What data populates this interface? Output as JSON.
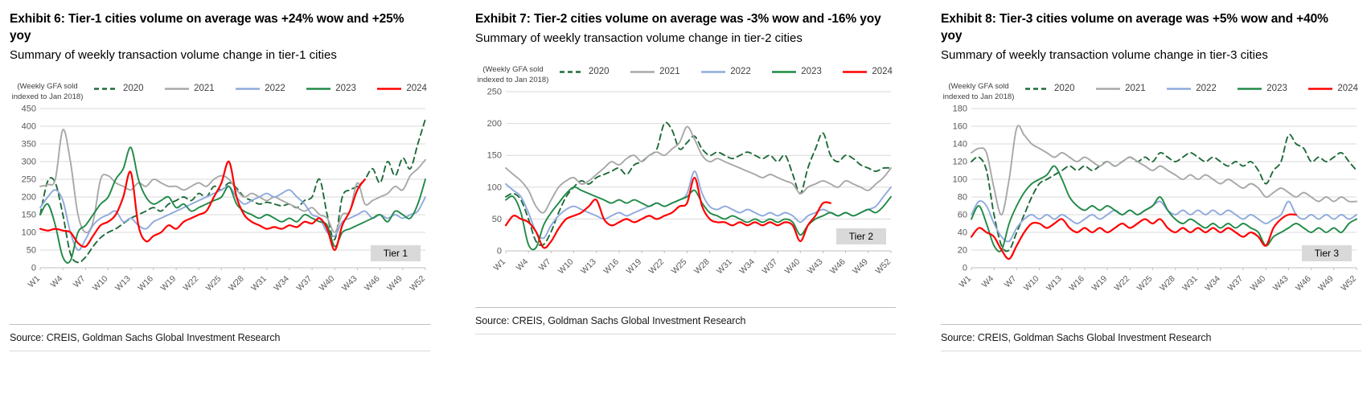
{
  "style": {
    "grid_color": "#d9d9d9",
    "axis_color": "#bfbfbf",
    "tick_label_color": "#595959",
    "badge_bg": "#d9d9d9"
  },
  "chart_data": [
    {
      "type": "line",
      "title": "Exhibit 6: Tier-1 cities volume on average was +24% wow and +25% yoy",
      "subtitle": "Summary of weekly transaction volume change in tier-1 cities",
      "ylabel": "(Weekly GFA sold indexed to Jan 2018)",
      "tier_label": "Tier 1",
      "source": "Source: CREIS, Goldman Sachs Global Investment Research",
      "legend_position": "top",
      "grid": true,
      "x_weeks": 52,
      "x_tick_labels": [
        "W1",
        "W4",
        "W7",
        "W10",
        "W13",
        "W16",
        "W19",
        "W22",
        "W25",
        "W28",
        "W31",
        "W34",
        "W37",
        "W40",
        "W43",
        "W46",
        "W49",
        "W52"
      ],
      "ylim": [
        0,
        450
      ],
      "y_ticks": [
        0,
        50,
        100,
        150,
        200,
        250,
        300,
        350,
        400,
        450
      ],
      "series": [
        {
          "name": "2020",
          "color": "#1f6b3a",
          "dash": "7 5",
          "values": [
            150,
            245,
            240,
            150,
            40,
            15,
            30,
            60,
            85,
            100,
            110,
            125,
            140,
            150,
            160,
            170,
            160,
            180,
            190,
            200,
            190,
            210,
            200,
            230,
            220,
            240,
            225,
            200,
            190,
            180,
            185,
            180,
            175,
            180,
            170,
            190,
            200,
            250,
            150,
            80,
            200,
            220,
            230,
            250,
            280,
            240,
            300,
            260,
            310,
            280,
            350,
            420
          ]
        },
        {
          "name": "2021",
          "color": "#a8a8a8",
          "dash": null,
          "values": [
            230,
            235,
            250,
            390,
            300,
            150,
            100,
            130,
            250,
            260,
            240,
            230,
            220,
            240,
            230,
            250,
            240,
            230,
            230,
            220,
            230,
            240,
            230,
            250,
            260,
            250,
            220,
            200,
            210,
            200,
            190,
            200,
            190,
            180,
            170,
            160,
            170,
            150,
            140,
            100,
            150,
            160,
            240,
            180,
            190,
            200,
            210,
            230,
            220,
            260,
            280,
            305
          ]
        },
        {
          "name": "2022",
          "color": "#8faadc",
          "dash": null,
          "values": [
            170,
            200,
            220,
            190,
            100,
            50,
            80,
            120,
            140,
            150,
            160,
            130,
            140,
            120,
            110,
            130,
            140,
            150,
            160,
            170,
            180,
            190,
            200,
            210,
            220,
            230,
            200,
            180,
            190,
            200,
            210,
            200,
            210,
            220,
            200,
            180,
            150,
            140,
            100,
            90,
            130,
            140,
            150,
            160,
            140,
            150,
            140,
            150,
            140,
            150,
            160,
            200
          ]
        },
        {
          "name": "2023",
          "color": "#208a47",
          "dash": null,
          "values": [
            150,
            180,
            120,
            30,
            20,
            100,
            120,
            150,
            180,
            200,
            250,
            280,
            340,
            250,
            200,
            180,
            190,
            200,
            170,
            180,
            160,
            170,
            180,
            190,
            200,
            230,
            180,
            160,
            150,
            140,
            150,
            140,
            130,
            140,
            130,
            150,
            140,
            130,
            120,
            60,
            100,
            110,
            120,
            130,
            140,
            150,
            130,
            160,
            150,
            140,
            180,
            250
          ]
        },
        {
          "name": "2024",
          "color": "#fe0000",
          "dash": null,
          "values": [
            110,
            105,
            110,
            105,
            100,
            70,
            60,
            90,
            120,
            130,
            150,
            200,
            270,
            120,
            75,
            90,
            100,
            120,
            110,
            130,
            140,
            150,
            160,
            200,
            240,
            300,
            200,
            150,
            130,
            120,
            110,
            115,
            110,
            120,
            115,
            130,
            125,
            140,
            110,
            50,
            120,
            160,
            220,
            250,
            null,
            null,
            null,
            null,
            null,
            null,
            null,
            null
          ]
        }
      ]
    },
    {
      "type": "line",
      "title": "Exhibit 7: Tier-2 cities volume on average was -3% wow and -16% yoy",
      "subtitle": "Summary of weekly transaction volume change in tier-2 cities",
      "ylabel": "(Weekly GFA sold indexed to Jan 2018)",
      "tier_label": "Tier 2",
      "source": "Source: CREIS, Goldman Sachs Global Investment Research",
      "legend_position": "top",
      "grid": true,
      "x_weeks": 52,
      "x_tick_labels": [
        "W1",
        "W4",
        "W7",
        "W10",
        "W13",
        "W16",
        "W19",
        "W22",
        "W25",
        "W28",
        "W31",
        "W34",
        "W37",
        "W40",
        "W43",
        "W46",
        "W49",
        "W52"
      ],
      "ylim": [
        0,
        250
      ],
      "y_ticks": [
        0,
        50,
        100,
        150,
        200,
        250
      ],
      "series": [
        {
          "name": "2020",
          "color": "#1f6b3a",
          "dash": "7 5",
          "values": [
            85,
            90,
            80,
            50,
            15,
            10,
            30,
            60,
            85,
            100,
            110,
            105,
            115,
            120,
            125,
            130,
            120,
            135,
            140,
            150,
            160,
            200,
            190,
            160,
            170,
            180,
            160,
            150,
            155,
            150,
            145,
            150,
            155,
            150,
            145,
            150,
            140,
            150,
            120,
            90,
            130,
            160,
            185,
            150,
            140,
            150,
            145,
            135,
            130,
            125,
            130,
            130
          ]
        },
        {
          "name": "2021",
          "color": "#a8a8a8",
          "dash": null,
          "values": [
            130,
            120,
            110,
            95,
            70,
            60,
            80,
            100,
            110,
            115,
            105,
            110,
            120,
            130,
            140,
            135,
            145,
            150,
            140,
            150,
            155,
            150,
            160,
            170,
            195,
            175,
            150,
            140,
            145,
            140,
            135,
            130,
            125,
            120,
            115,
            120,
            115,
            110,
            105,
            90,
            100,
            105,
            110,
            105,
            100,
            110,
            105,
            100,
            95,
            105,
            115,
            130
          ]
        },
        {
          "name": "2022",
          "color": "#8faadc",
          "dash": null,
          "values": [
            105,
            95,
            85,
            60,
            30,
            20,
            40,
            55,
            65,
            70,
            65,
            60,
            55,
            50,
            55,
            60,
            55,
            60,
            65,
            70,
            75,
            70,
            75,
            80,
            90,
            125,
            90,
            70,
            65,
            70,
            65,
            60,
            65,
            60,
            55,
            60,
            55,
            60,
            55,
            45,
            55,
            60,
            65,
            60,
            55,
            60,
            55,
            60,
            65,
            70,
            85,
            100
          ]
        },
        {
          "name": "2023",
          "color": "#208a47",
          "dash": null,
          "values": [
            80,
            85,
            60,
            10,
            5,
            40,
            60,
            75,
            90,
            100,
            95,
            90,
            85,
            80,
            75,
            80,
            75,
            80,
            75,
            70,
            75,
            70,
            75,
            80,
            85,
            95,
            75,
            60,
            55,
            50,
            55,
            50,
            45,
            50,
            45,
            50,
            45,
            50,
            45,
            25,
            40,
            50,
            55,
            60,
            55,
            60,
            55,
            60,
            65,
            60,
            70,
            85
          ]
        },
        {
          "name": "2024",
          "color": "#fe0000",
          "dash": null,
          "values": [
            40,
            55,
            50,
            45,
            30,
            5,
            15,
            35,
            50,
            55,
            60,
            70,
            80,
            50,
            40,
            45,
            50,
            45,
            50,
            55,
            50,
            55,
            60,
            70,
            75,
            115,
            70,
            50,
            45,
            45,
            40,
            45,
            40,
            45,
            40,
            45,
            40,
            45,
            40,
            15,
            40,
            55,
            75,
            75,
            null,
            null,
            null,
            null,
            null,
            null,
            null,
            null
          ]
        }
      ]
    },
    {
      "type": "line",
      "title": "Exhibit 8: Tier-3 cities volume on average was +5% wow and +40% yoy",
      "subtitle": "Summary of weekly transaction volume change in tier-3 cities",
      "ylabel": "(Weekly GFA sold indexed to Jan 2018)",
      "tier_label": "Tier 3",
      "source": "Source: CREIS, Goldman Sachs Global Investment Research",
      "legend_position": "top",
      "grid": true,
      "x_weeks": 52,
      "x_tick_labels": [
        "W1",
        "W4",
        "W7",
        "W10",
        "W13",
        "W16",
        "W19",
        "W22",
        "W25",
        "W28",
        "W31",
        "W34",
        "W37",
        "W40",
        "W43",
        "W46",
        "W49",
        "W52"
      ],
      "ylim": [
        0,
        180
      ],
      "y_ticks": [
        0,
        20,
        40,
        60,
        80,
        100,
        120,
        140,
        160,
        180
      ],
      "series": [
        {
          "name": "2020",
          "color": "#1f6b3a",
          "dash": "7 5",
          "values": [
            120,
            125,
            110,
            60,
            25,
            20,
            40,
            60,
            80,
            95,
            100,
            105,
            110,
            115,
            110,
            115,
            110,
            115,
            120,
            115,
            120,
            125,
            120,
            125,
            120,
            130,
            125,
            120,
            125,
            130,
            125,
            120,
            125,
            120,
            115,
            120,
            115,
            120,
            110,
            95,
            110,
            120,
            150,
            140,
            135,
            120,
            125,
            120,
            125,
            130,
            120,
            110
          ]
        },
        {
          "name": "2021",
          "color": "#a8a8a8",
          "dash": null,
          "values": [
            130,
            135,
            130,
            90,
            60,
            100,
            158,
            150,
            140,
            135,
            130,
            125,
            130,
            125,
            120,
            125,
            120,
            115,
            120,
            115,
            120,
            125,
            120,
            115,
            110,
            115,
            110,
            105,
            100,
            105,
            100,
            105,
            100,
            95,
            100,
            95,
            90,
            95,
            90,
            80,
            85,
            90,
            85,
            80,
            85,
            80,
            75,
            80,
            75,
            80,
            75,
            75
          ]
        },
        {
          "name": "2022",
          "color": "#8faadc",
          "dash": null,
          "values": [
            60,
            75,
            70,
            50,
            35,
            30,
            45,
            55,
            60,
            55,
            60,
            55,
            60,
            55,
            50,
            55,
            60,
            55,
            60,
            65,
            60,
            65,
            60,
            65,
            70,
            75,
            65,
            60,
            65,
            60,
            65,
            60,
            65,
            60,
            65,
            60,
            55,
            60,
            55,
            50,
            55,
            60,
            75,
            60,
            55,
            60,
            55,
            60,
            55,
            60,
            55,
            60
          ]
        },
        {
          "name": "2023",
          "color": "#208a47",
          "dash": null,
          "values": [
            55,
            70,
            50,
            25,
            20,
            50,
            70,
            85,
            95,
            100,
            105,
            115,
            100,
            80,
            70,
            65,
            70,
            65,
            70,
            65,
            60,
            65,
            60,
            65,
            70,
            80,
            65,
            55,
            50,
            55,
            50,
            45,
            50,
            45,
            50,
            45,
            50,
            45,
            40,
            25,
            35,
            40,
            45,
            50,
            45,
            40,
            45,
            40,
            45,
            40,
            50,
            55
          ]
        },
        {
          "name": "2024",
          "color": "#fe0000",
          "dash": null,
          "values": [
            35,
            45,
            40,
            35,
            20,
            10,
            25,
            40,
            50,
            50,
            45,
            50,
            55,
            45,
            40,
            45,
            40,
            45,
            40,
            45,
            50,
            45,
            50,
            55,
            50,
            55,
            45,
            40,
            45,
            40,
            45,
            40,
            45,
            40,
            45,
            40,
            35,
            40,
            35,
            25,
            45,
            55,
            60,
            60,
            null,
            null,
            null,
            null,
            null,
            null,
            null,
            null
          ]
        }
      ]
    }
  ]
}
